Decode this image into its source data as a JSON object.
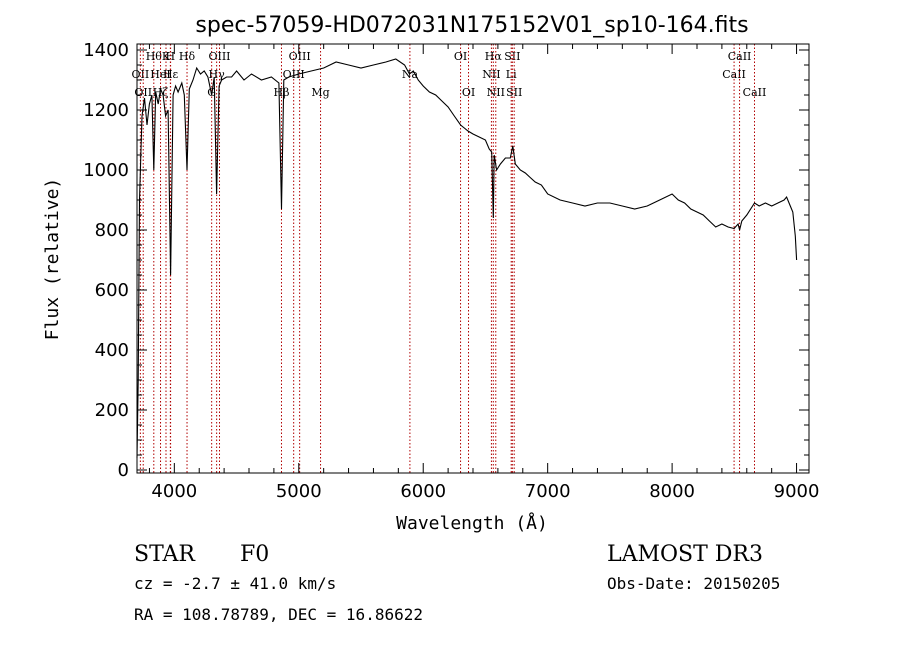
{
  "chart_data": {
    "type": "line",
    "title": "spec-57059-HD072031N175152V01_sp10-164.fits",
    "xlabel": "Wavelength (Å)",
    "ylabel": "Flux (relative)",
    "xlim": [
      3700,
      9100
    ],
    "ylim": [
      -10,
      1420
    ],
    "xticks": [
      4000,
      5000,
      6000,
      7000,
      8000,
      9000
    ],
    "yticks": [
      0,
      200,
      400,
      600,
      800,
      1000,
      1200,
      1400
    ],
    "grid": false,
    "series": [
      {
        "x": [
          3700,
          3710,
          3720,
          3740,
          3760,
          3780,
          3800,
          3820,
          3835,
          3850,
          3870,
          3890,
          3910,
          3930,
          3950,
          3970,
          3990,
          4010,
          4030,
          4060,
          4080,
          4102,
          4120,
          4150,
          4180,
          4210,
          4240,
          4270,
          4300,
          4320,
          4340,
          4360,
          4380,
          4420,
          4460,
          4500,
          4560,
          4620,
          4700,
          4780,
          4840,
          4861,
          4880,
          4920,
          5000,
          5100,
          5200,
          5300,
          5400,
          5500,
          5600,
          5700,
          5780,
          5850,
          5890,
          5920,
          5960,
          6000,
          6050,
          6100,
          6150,
          6200,
          6250,
          6300,
          6330,
          6360,
          6400,
          6450,
          6500,
          6530,
          6550,
          6563,
          6570,
          6590,
          6620,
          6660,
          6700,
          6720,
          6740,
          6780,
          6820,
          6860,
          6900,
          6950,
          7000,
          7100,
          7200,
          7300,
          7400,
          7500,
          7600,
          7700,
          7800,
          7900,
          8000,
          8050,
          8100,
          8150,
          8200,
          8250,
          8300,
          8350,
          8400,
          8450,
          8498,
          8530,
          8542,
          8560,
          8600,
          8662,
          8700,
          8750,
          8800,
          8850,
          8900,
          8920,
          8950,
          8970,
          8990,
          9000
        ],
        "values": [
          40,
          300,
          900,
          1180,
          1240,
          1150,
          1220,
          1250,
          1000,
          1260,
          1220,
          1270,
          1250,
          1180,
          1200,
          650,
          1250,
          1280,
          1260,
          1290,
          1250,
          1000,
          1270,
          1300,
          1340,
          1320,
          1330,
          1310,
          1250,
          1310,
          920,
          1280,
          1300,
          1310,
          1310,
          1330,
          1300,
          1320,
          1300,
          1310,
          1290,
          870,
          1300,
          1310,
          1320,
          1330,
          1340,
          1360,
          1350,
          1340,
          1350,
          1360,
          1370,
          1350,
          1320,
          1330,
          1300,
          1280,
          1260,
          1250,
          1230,
          1210,
          1180,
          1150,
          1140,
          1130,
          1120,
          1110,
          1100,
          1070,
          1060,
          840,
          1050,
          1000,
          1020,
          1040,
          1040,
          1080,
          1020,
          1000,
          990,
          975,
          960,
          950,
          920,
          900,
          890,
          880,
          890,
          890,
          880,
          870,
          880,
          900,
          920,
          900,
          890,
          870,
          860,
          850,
          830,
          810,
          820,
          810,
          805,
          820,
          800,
          830,
          850,
          890,
          880,
          890,
          880,
          890,
          900,
          910,
          880,
          860,
          780,
          700
        ]
      }
    ],
    "lines": [
      {
        "x": 3727,
        "label": "OII",
        "row": 2
      },
      {
        "x": 3750,
        "label": "OII",
        "row": 3
      },
      {
        "x": 3835,
        "label": "Hθ",
        "row": 1
      },
      {
        "x": 3889,
        "label": "HeI",
        "row": 2
      },
      {
        "x": 3889,
        "label": "Hζ",
        "row": 3
      },
      {
        "x": 3933,
        "label": "K",
        "row": 1
      },
      {
        "x": 3968,
        "label": "H",
        "row": 1
      },
      {
        "x": 3970,
        "label": "Hε",
        "row": 2
      },
      {
        "x": 4102,
        "label": "Hδ",
        "row": 1
      },
      {
        "x": 4300,
        "label": "G",
        "row": 3
      },
      {
        "x": 4340,
        "label": "Hγ",
        "row": 2
      },
      {
        "x": 4363,
        "label": "OIII",
        "row": 1
      },
      {
        "x": 4861,
        "label": "Hβ",
        "row": 3
      },
      {
        "x": 4959,
        "label": "OIII",
        "row": 2
      },
      {
        "x": 5007,
        "label": "OIII",
        "row": 1
      },
      {
        "x": 5175,
        "label": "Mg",
        "row": 3
      },
      {
        "x": 5893,
        "label": "Na",
        "row": 2
      },
      {
        "x": 6300,
        "label": "OI",
        "row": 1
      },
      {
        "x": 6364,
        "label": "OI",
        "row": 3
      },
      {
        "x": 6548,
        "label": "NII",
        "row": 2
      },
      {
        "x": 6563,
        "label": "Hα",
        "row": 1
      },
      {
        "x": 6583,
        "label": "NII",
        "row": 3
      },
      {
        "x": 6707,
        "label": "Li",
        "row": 2
      },
      {
        "x": 6716,
        "label": "SII",
        "row": 1
      },
      {
        "x": 6731,
        "label": "SII",
        "row": 3
      },
      {
        "x": 8498,
        "label": "CaII",
        "row": 2
      },
      {
        "x": 8542,
        "label": "CaII",
        "row": 1
      },
      {
        "x": 8662,
        "label": "CaII",
        "row": 3
      }
    ]
  },
  "info": {
    "object_class": "STAR",
    "subclass": "F0",
    "survey": "LAMOST DR3",
    "redshift": "cz = -2.7 ± 41.0 km/s",
    "obs_date": "Obs-Date: 20150205",
    "coords": "RA = 108.78789, DEC =  16.86622"
  },
  "colors": {
    "spectrum": "#000000",
    "line_markers": "#b00000"
  }
}
